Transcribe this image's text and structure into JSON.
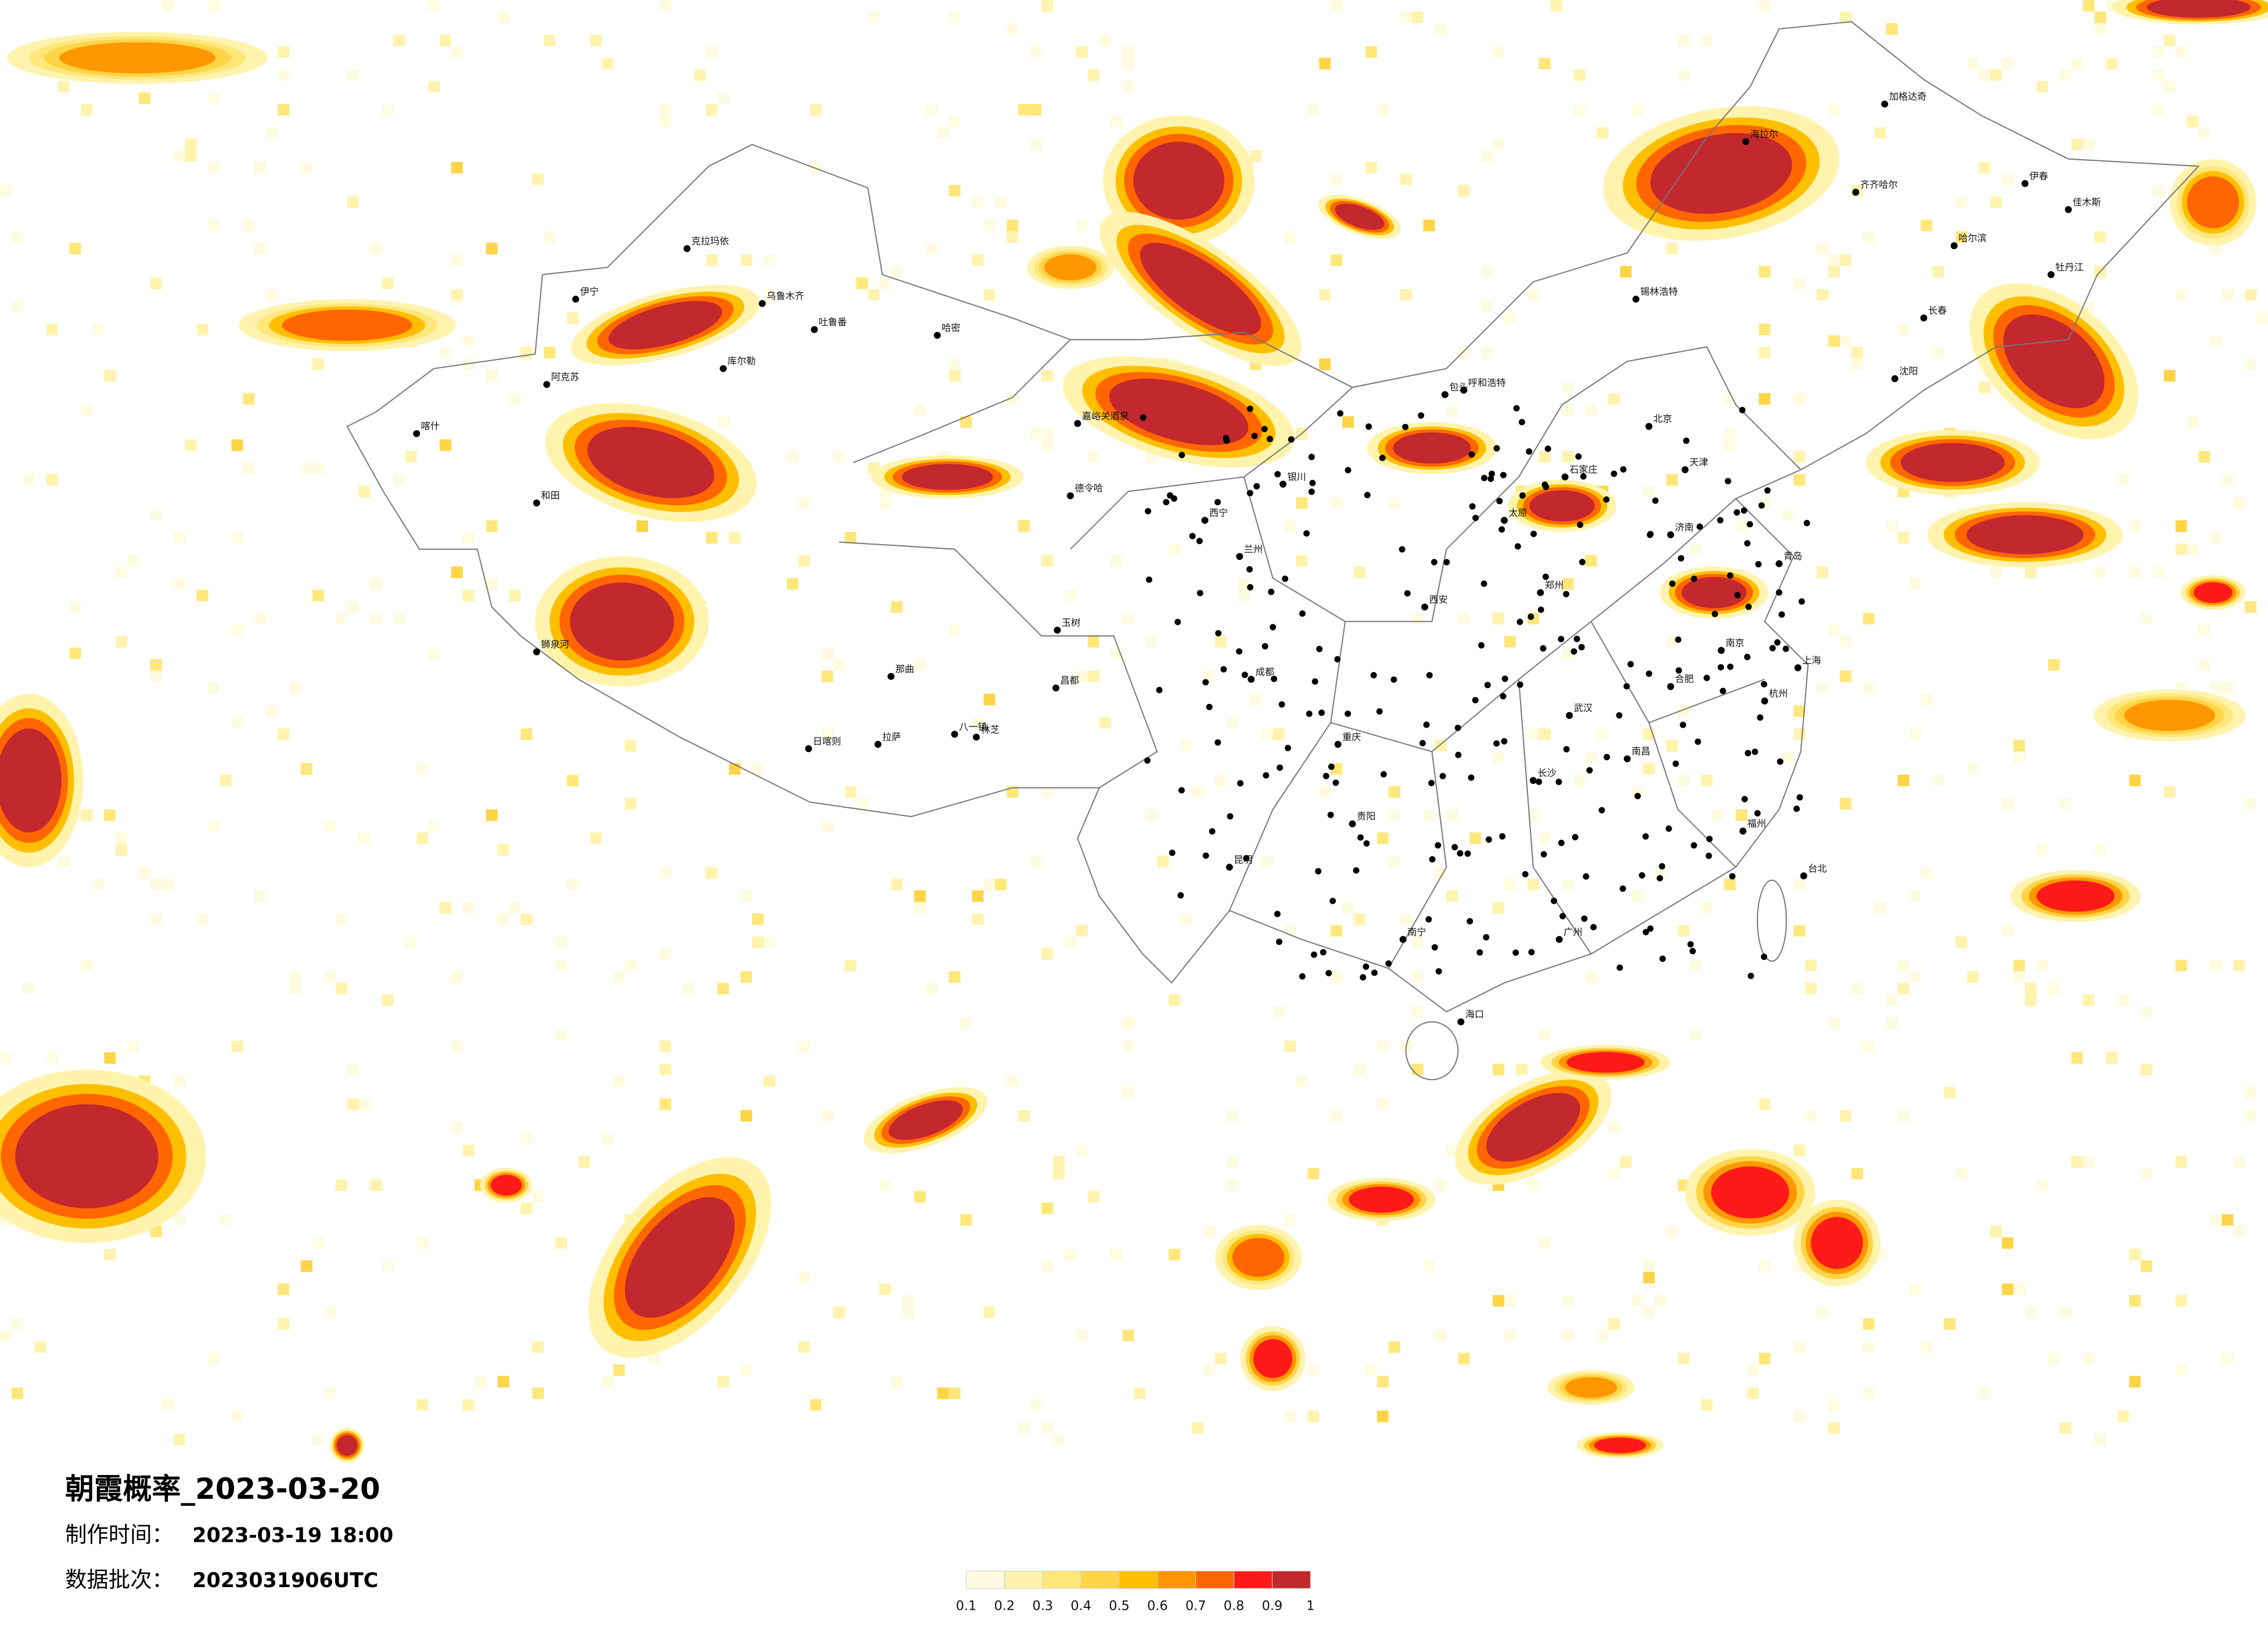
{
  "header": {
    "title": "朝霞概率_2023-03-20",
    "issued_label": "制作时间：",
    "issued": "2023-03-19 18:00",
    "batch_label": "数据批次：",
    "batch": "2023031906UTC"
  },
  "legend": {
    "ticks": [
      0.1,
      0.2,
      0.3,
      0.4,
      0.5,
      0.6,
      0.7,
      0.8,
      0.9,
      1
    ],
    "colors": [
      "#fffbe0",
      "#fff3ad",
      "#ffe77a",
      "#ffd447",
      "#ffbf00",
      "#ff9800",
      "#ff6600",
      "#ff1a1a",
      "#c3282e"
    ]
  },
  "cities": [
    "克拉玛依",
    "乌鲁木齐",
    "伊宁",
    "哈密",
    "阿克苏",
    "喀什",
    "和田",
    "吐鲁番",
    "库尔勒",
    "狮泉河",
    "日喀则",
    "拉萨",
    "那曲",
    "八一镇",
    "林芝",
    "昌都",
    "玉树",
    "德令哈",
    "嘉峪关酒泉",
    "西宁",
    "兰州",
    "银川",
    "呼和浩特",
    "包头",
    "锡林浩特",
    "海拉尔",
    "加格达奇",
    "齐齐哈尔",
    "哈尔滨",
    "长春",
    "沈阳",
    "北京",
    "天津",
    "石家庄",
    "太原",
    "济南",
    "青岛",
    "郑州",
    "西安",
    "南京",
    "上海",
    "合肥",
    "武汉",
    "杭州",
    "成都",
    "重庆",
    "长沙",
    "南昌",
    "贵阳",
    "福州",
    "昆明",
    "南宁",
    "广州",
    "海口",
    "台北",
    "佳木斯",
    "牡丹江",
    "伊春"
  ]
}
